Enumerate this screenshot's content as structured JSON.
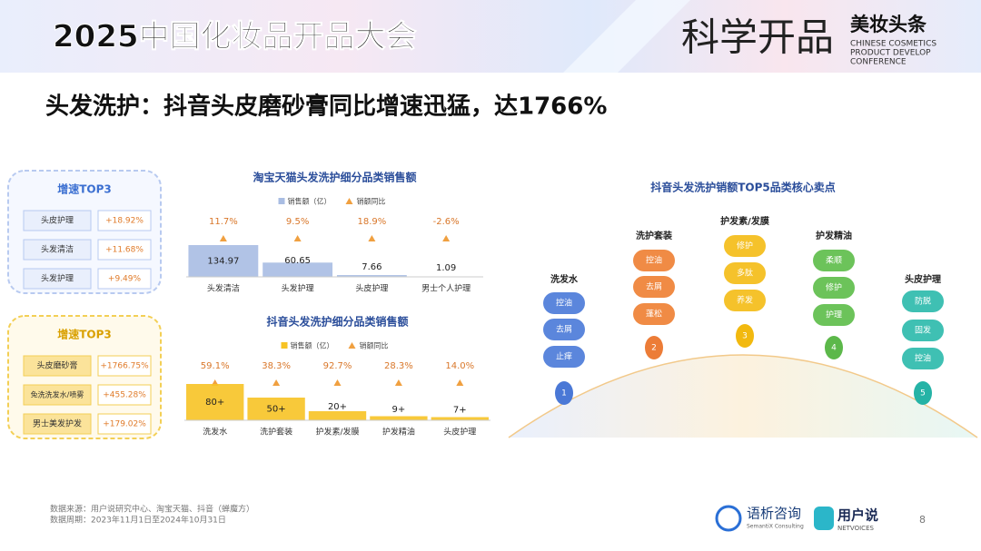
{
  "header": {
    "event_title": "2025中国化妆品开品大会",
    "brand_big": "科学开品",
    "brand_logo": "美妆头条",
    "brand_en": [
      "CHINESE COSMETICS",
      "PRODUCT DEVELOP",
      "CONFERENCE"
    ]
  },
  "slide_title": "头发洗护：抖音头皮磨砂膏同比增速迅猛，达1766%",
  "growth_panels": [
    {
      "title": "增速TOP3",
      "rows": [
        {
          "label": "头皮护理",
          "value": "+18.92%"
        },
        {
          "label": "头发清洁",
          "value": "+11.68%"
        },
        {
          "label": "头发护理",
          "value": "+9.49%"
        }
      ]
    },
    {
      "title": "增速TOP3",
      "rows": [
        {
          "label": "头皮磨砂膏",
          "value": "+1766.75%"
        },
        {
          "label": "免洗洗发水/喷雾",
          "value": "+455.28%"
        },
        {
          "label": "男士美发护发",
          "value": "+179.02%"
        }
      ]
    }
  ],
  "chart_data": [
    {
      "type": "bar",
      "title": "淘宝天猫头发洗护细分品类销售额",
      "categories": [
        "头发清洁",
        "头发护理",
        "头皮护理",
        "男士个人护理"
      ],
      "series": [
        {
          "name": "销售额（亿）",
          "color": "#a9bde3",
          "values": [
            134.97,
            60.65,
            7.66,
            1.09
          ]
        },
        {
          "name": "销额同比",
          "color": "#f0a040",
          "values": [
            11.7,
            9.5,
            18.9,
            -2.6
          ],
          "value_labels": [
            "11.7%",
            "9.5%",
            "18.9%",
            "-2.6%"
          ]
        }
      ]
    },
    {
      "type": "bar",
      "title": "抖音头发洗护细分品类销售额",
      "categories": [
        "洗发水",
        "洗护套装",
        "护发素/发膜",
        "护发精油",
        "头皮护理"
      ],
      "series": [
        {
          "name": "销售额（亿）",
          "color": "#f7c325",
          "values": [
            80,
            50,
            20,
            9,
            7
          ],
          "value_labels": [
            "80+",
            "50+",
            "20+",
            "9+",
            "7+"
          ]
        },
        {
          "name": "销额同比",
          "color": "#f0a040",
          "values": [
            59.1,
            38.3,
            92.7,
            28.3,
            14.0
          ],
          "value_labels": [
            "59.1%",
            "38.3%",
            "92.7%",
            "28.3%",
            "14.0%"
          ]
        }
      ]
    }
  ],
  "diagram": {
    "title": "抖音头发洗护销额TOP5品类核心卖点",
    "columns": [
      {
        "rank": 1,
        "label": "洗发水",
        "points": [
          "控油",
          "去屑",
          "止痒"
        ]
      },
      {
        "rank": 2,
        "label": "洗护套装",
        "points": [
          "控油",
          "去屑",
          "蓬松"
        ]
      },
      {
        "rank": 3,
        "label": "护发素/发膜",
        "points": [
          "修护",
          "多肽",
          "养发"
        ]
      },
      {
        "rank": 4,
        "label": "护发精油",
        "points": [
          "柔顺",
          "修护",
          "护理"
        ]
      },
      {
        "rank": 5,
        "label": "头皮护理",
        "points": [
          "防脱",
          "固发",
          "控油"
        ]
      }
    ]
  },
  "footer": {
    "source": "数据来源：用户说研究中心、淘宝天猫、抖音（蝉魔方）",
    "period": "数据周期：2023年11月1日至2024年10月31日",
    "logo1": "语析咨询",
    "logo1_en": "SemantiX Consulting",
    "logo2": "用户说",
    "logo2_en": "NETVOICES",
    "page_number": 8
  }
}
